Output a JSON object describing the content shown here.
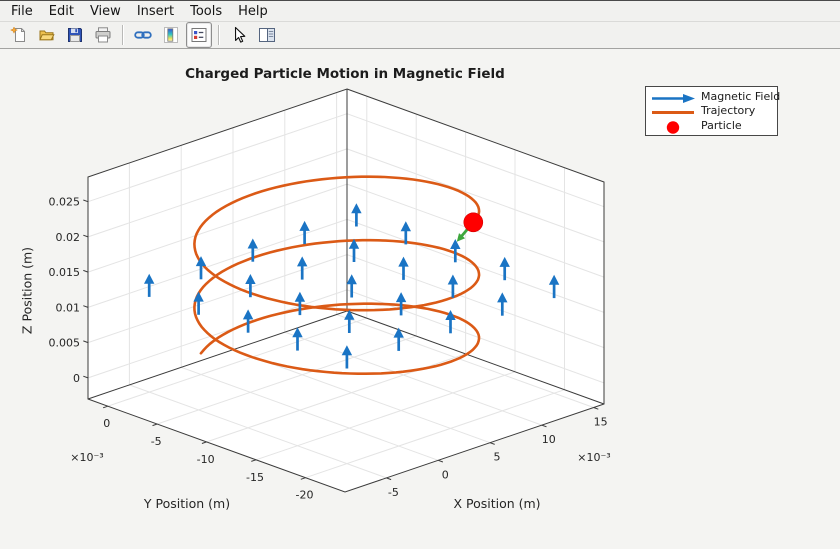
{
  "menubar": {
    "items": [
      "File",
      "Edit",
      "View",
      "Insert",
      "Tools",
      "Help"
    ]
  },
  "toolbar": {
    "buttons": [
      {
        "icon": "new-figure"
      },
      {
        "icon": "open-file"
      },
      {
        "icon": "save-figure"
      },
      {
        "icon": "print-figure",
        "separator_after": true
      },
      {
        "icon": "link-plot"
      },
      {
        "icon": "insert-colorbar"
      },
      {
        "icon": "insert-legend",
        "pressed": true,
        "separator_after": true
      },
      {
        "icon": "edit-plot"
      },
      {
        "icon": "property-inspector"
      }
    ]
  },
  "chart_data": {
    "type": "line",
    "subtype": "3d-helix-trajectory-with-quiver-field",
    "title": "Charged Particle Motion in Magnetic Field",
    "xlabel": "X Position (m)",
    "ylabel": "Y Position (m)",
    "zlabel": "Z Position (m)",
    "tick_scale_label": "×10⁻³",
    "xlim": [
      -0.009,
      0.016
    ],
    "ylim": [
      -0.024,
      0.002
    ],
    "zlim": [
      -0.003,
      0.0285
    ],
    "xticks": {
      "values_m": [
        -0.005,
        0,
        0.005,
        0.01,
        0.015
      ],
      "labels": [
        "-5",
        "0",
        "5",
        "10",
        "15"
      ]
    },
    "yticks": {
      "values_m": [
        0,
        -0.005,
        -0.01,
        -0.015,
        -0.02
      ],
      "labels": [
        "0",
        "-5",
        "-10",
        "-15",
        "-20"
      ]
    },
    "zticks": {
      "values_m": [
        0,
        0.005,
        0.01,
        0.015,
        0.02,
        0.025
      ],
      "labels": [
        "0",
        "0.005",
        "0.01",
        "0.015",
        "0.02",
        "0.025"
      ]
    },
    "view": {
      "azimuth_deg": -37.5,
      "elevation_deg": 30
    },
    "grid": true,
    "legend": {
      "position": "outside-top-right",
      "entries": [
        {
          "label": "Magnetic Field",
          "symbol": "arrow",
          "color": "#1A74C4"
        },
        {
          "label": "Trajectory",
          "symbol": "line",
          "color": "#DB5A16"
        },
        {
          "label": "Particle",
          "symbol": "dot",
          "color": "#FF0000"
        }
      ]
    },
    "magnetic_field": {
      "direction": [
        0,
        0,
        1
      ],
      "x_grid_m": [
        -0.005,
        0,
        0.005,
        0.01,
        0.015
      ],
      "y_grid_m": [
        -0.02,
        -0.015,
        -0.01,
        -0.005,
        0
      ],
      "arrow_z_base_m": 0.0105,
      "arrow_length_m": 0.0033,
      "color": "#1A74C4"
    },
    "trajectory": {
      "shape": "helix",
      "start_point_m": [
        0,
        0,
        0
      ],
      "center_xy_m": [
        0.0048,
        -0.0087
      ],
      "radius_m": 0.00994,
      "start_angle_deg": 118.9,
      "sweep_deg": -898.9,
      "z_end_m": 0.0225,
      "turns": 2.5,
      "color": "#DB5A16"
    },
    "particle": {
      "position_m": [
        0.00977,
        -0.01731,
        0.0225
      ],
      "color": "#FF0000",
      "marker_size_px": 19
    },
    "velocity_vector": {
      "delta_m": [
        -0.0035,
        -0.002,
        0
      ],
      "color": "#3DA63D"
    },
    "colors": {
      "wall": "#FFFFFF",
      "grid_line": "#E4E4E4",
      "box_edge": "#3B3B3B",
      "tick_text": "#262626",
      "figure_bg": "#F4F4F2"
    }
  }
}
